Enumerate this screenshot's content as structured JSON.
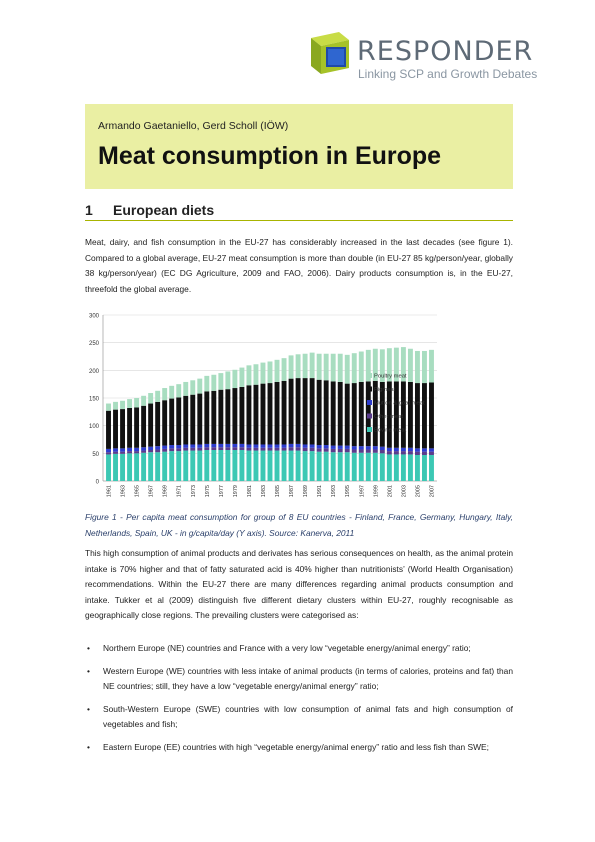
{
  "logo": {
    "title": "RESPONDER",
    "subtitle": "Linking SCP and Growth Debates"
  },
  "header": {
    "authors": "Armando Gaetaniello, Gerd Scholl (IÖW)",
    "title": "Meat consumption in Europe"
  },
  "section": {
    "number": "1",
    "title": "European diets"
  },
  "intro_paragraph": "Meat, dairy, and fish consumption in the EU-27 has considerably increased in the last decades (see figure 1). Compared to a global average, EU-27 meat consumption is more than double (in EU-27 85 kg/person/year, globally 38 kg/person/year) (EC DG Agriculture, 2009 and FAO, 2006). Dairy products consumption is, in the EU-27, threefold the global average.",
  "caption": "Figure 1 - Per capita meat consumption for group of 8 EU countries - Finland, France, Germany, Hungary, Italy, Netherlands, Spain, UK - in g/capita/day (Y axis). Source: Kanerva, 2011",
  "body_paragraph": "This high consumption of animal products and derivates has serious consequences on health, as the animal protein intake is 70% higher and that of fatty saturated acid is 40% higher than nutritionists’ (World Health Organisation) recommendations. Within the EU-27 there are many differences regarding animal products consumption and intake. Tukker et al (2009) distinguish five different dietary clusters within EU-27, roughly recognisable as geographically close regions. The prevailing clusters were categorised as:",
  "bullets": [
    "Northern Europe (NE) countries and France with a very low “vegetable energy/animal energy” ratio;",
    "Western Europe (WE) countries with less intake of animal products (in terms of calories, proteins and fat) than NE countries; still, they have a low “vegetable energy/animal energy” ratio;",
    "South-Western Europe (SWE) countries with low consumption of animal fats and high consumption of vegetables and fish;",
    "Eastern Europe (EE) countries with high “vegetable energy/animal energy” ratio and less fish than SWE;"
  ],
  "bullet_symbol": "•",
  "colors": {
    "accent": "#a8b400",
    "header_bg": "#eaefa3",
    "caption": "#2a3f6a"
  },
  "chart_data": {
    "type": "bar",
    "stacked": true,
    "ylim": [
      0,
      300
    ],
    "yticks": [
      "0",
      "50",
      "100",
      "150",
      "200",
      "250",
      "300"
    ],
    "x": [
      1961,
      1962,
      1963,
      1964,
      1965,
      1966,
      1967,
      1968,
      1969,
      1970,
      1971,
      1972,
      1973,
      1974,
      1975,
      1976,
      1977,
      1978,
      1979,
      1980,
      1981,
      1982,
      1983,
      1984,
      1985,
      1986,
      1987,
      1988,
      1989,
      1990,
      1991,
      1992,
      1993,
      1994,
      1995,
      1996,
      1997,
      1998,
      1999,
      2000,
      2001,
      2002,
      2003,
      2004,
      2005,
      2006,
      2007
    ],
    "xtick_labels": [
      "1961",
      "1963",
      "1965",
      "1967",
      "1969",
      "1971",
      "1973",
      "1975",
      "1977",
      "1979",
      "1981",
      "1983",
      "1985",
      "1987",
      "1989",
      "1991",
      "1993",
      "1995",
      "1997",
      "1999",
      "2001",
      "2003",
      "2005",
      "2007"
    ],
    "legend_position": "right",
    "series": [
      {
        "name": "Bovine meat",
        "color": "#3cc8b4",
        "values": [
          48,
          49,
          49,
          50,
          50,
          51,
          52,
          52,
          53,
          54,
          54,
          55,
          55,
          55,
          56,
          56,
          56,
          56,
          56,
          56,
          55,
          55,
          55,
          55,
          55,
          55,
          55,
          55,
          54,
          54,
          53,
          53,
          52,
          52,
          52,
          51,
          51,
          51,
          51,
          50,
          48,
          48,
          48,
          48,
          47,
          47,
          47
        ]
      },
      {
        "name": "Other meat",
        "color": "#5a3c8c",
        "values": [
          4,
          4,
          4,
          4,
          4,
          4,
          4,
          5,
          5,
          5,
          5,
          5,
          5,
          5,
          5,
          5,
          5,
          5,
          5,
          5,
          5,
          5,
          5,
          5,
          5,
          5,
          6,
          6,
          6,
          6,
          6,
          6,
          6,
          6,
          6,
          6,
          6,
          6,
          6,
          6,
          6,
          6,
          6,
          6,
          6,
          6,
          6
        ]
      },
      {
        "name": "Mutton & goat meat",
        "color": "#2d3ccc",
        "values": [
          6,
          6,
          6,
          6,
          6,
          6,
          6,
          6,
          6,
          6,
          6,
          6,
          6,
          6,
          6,
          6,
          6,
          6,
          6,
          6,
          6,
          6,
          6,
          6,
          6,
          6,
          6,
          6,
          6,
          6,
          6,
          6,
          6,
          6,
          6,
          6,
          6,
          6,
          6,
          6,
          6,
          6,
          6,
          6,
          6,
          6,
          6
        ]
      },
      {
        "name": "Pigmeat",
        "color": "#111111",
        "values": [
          69,
          70,
          71,
          72,
          73,
          75,
          78,
          80,
          82,
          84,
          86,
          88,
          90,
          92,
          95,
          96,
          98,
          99,
          101,
          103,
          107,
          108,
          110,
          111,
          113,
          115,
          118,
          119,
          120,
          120,
          118,
          117,
          116,
          115,
          112,
          114,
          116,
          117,
          118,
          117,
          120,
          120,
          120,
          119,
          118,
          118,
          119
        ]
      },
      {
        "name": "Poultry meat",
        "color": "#a8ddc0",
        "values": [
          13,
          14,
          15,
          16,
          17,
          18,
          19,
          20,
          22,
          23,
          24,
          25,
          26,
          27,
          28,
          29,
          30,
          32,
          33,
          35,
          36,
          37,
          38,
          39,
          40,
          41,
          42,
          43,
          44,
          46,
          47,
          48,
          50,
          51,
          52,
          54,
          55,
          57,
          58,
          59,
          60,
          61,
          62,
          60,
          58,
          58,
          59
        ]
      }
    ]
  }
}
